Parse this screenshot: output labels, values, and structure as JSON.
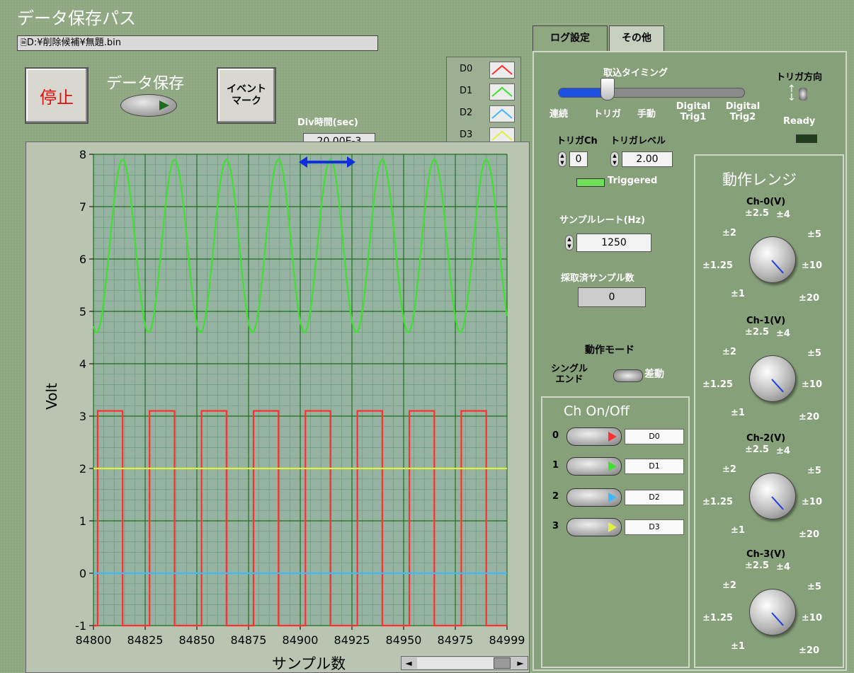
{
  "header": {
    "title": "データ保存パス",
    "path": "D:¥削除候補¥無題.bin",
    "path_icon": "file-path-icon"
  },
  "controls": {
    "stop_label": "停止",
    "save_label": "データ保存",
    "event_label_1": "イベント",
    "event_label_2": "マーク",
    "div_label": "Div時間(sec)",
    "div_value": "20.00E-3"
  },
  "legend": [
    {
      "name": "D0",
      "color": "#ff3030"
    },
    {
      "name": "D1",
      "color": "#40e030"
    },
    {
      "name": "D2",
      "color": "#40b8ff"
    },
    {
      "name": "D3",
      "color": "#e0f040"
    }
  ],
  "chart_data": {
    "type": "line",
    "xlabel": "サンプル数",
    "ylabel": "Volt",
    "xlim": [
      84800,
      84999
    ],
    "ylim": [
      -1,
      8
    ],
    "x_ticks": [
      "84800",
      "84825",
      "84850",
      "84875",
      "84900",
      "84925",
      "84950",
      "84975",
      "84999"
    ],
    "y_ticks": [
      "8",
      "7",
      "6",
      "5",
      "4",
      "3",
      "2",
      "1",
      "0",
      "-1"
    ],
    "grid": true,
    "series": [
      {
        "name": "D0",
        "color": "#ff3030",
        "shape": "square",
        "period": 25,
        "high": 3.1,
        "low": -1.0,
        "rise_at": 84802,
        "fall_at": 84814
      },
      {
        "name": "D1",
        "color": "#40e030",
        "shape": "sine",
        "period": 25,
        "max": 7.9,
        "min": 4.6,
        "peak_at": 84814
      },
      {
        "name": "D2",
        "color": "#40b8ff",
        "shape": "constant",
        "value": 0.0
      },
      {
        "name": "D3",
        "color": "#e0f040",
        "shape": "constant",
        "value": 2.0
      }
    ]
  },
  "scrollbar": {
    "left": "◄",
    "right": "►"
  },
  "tabs": [
    {
      "label": "ログ設定"
    },
    {
      "label": "その他"
    }
  ],
  "log": {
    "timing_label": "取込タイミング",
    "timing_options": [
      "連続",
      "トリガ",
      "手動",
      "Digital Trig1",
      "Digital Trig2"
    ],
    "timing_selected_index": 0,
    "trigger_dir_label": "トリガ方向",
    "ready_label": "Ready",
    "trig_ch_label": "トリガCh",
    "trig_ch_value": "0",
    "trig_level_label": "トリガレベル",
    "trig_level_value": "2.00",
    "triggered_label": "Triggered",
    "sample_rate_label": "サンプルレート(Hz)",
    "sample_rate_value": "1250",
    "collected_label": "採取済サンプル数",
    "collected_value": "0",
    "mode_label": "動作モード",
    "mode_single_1": "シングル",
    "mode_single_2": "エンド",
    "mode_diff": "差動"
  },
  "ch_onoff": {
    "title": "Ch On/Off",
    "channels": [
      {
        "num": "0",
        "name": "D0",
        "color": "#ff3030"
      },
      {
        "num": "1",
        "name": "D1",
        "color": "#40e030"
      },
      {
        "num": "2",
        "name": "D2",
        "color": "#40b8ff"
      },
      {
        "num": "3",
        "name": "D3",
        "color": "#e0f040"
      }
    ]
  },
  "range": {
    "title": "動作レンジ",
    "channels": [
      {
        "label": "Ch-0(V)"
      },
      {
        "label": "Ch-1(V)"
      },
      {
        "label": "Ch-2(V)"
      },
      {
        "label": "Ch-3(V)"
      }
    ],
    "scale": [
      "±1",
      "±1.25",
      "±2",
      "±2.5",
      "±4",
      "±5",
      "±10",
      "±20"
    ],
    "selected": "±10"
  }
}
